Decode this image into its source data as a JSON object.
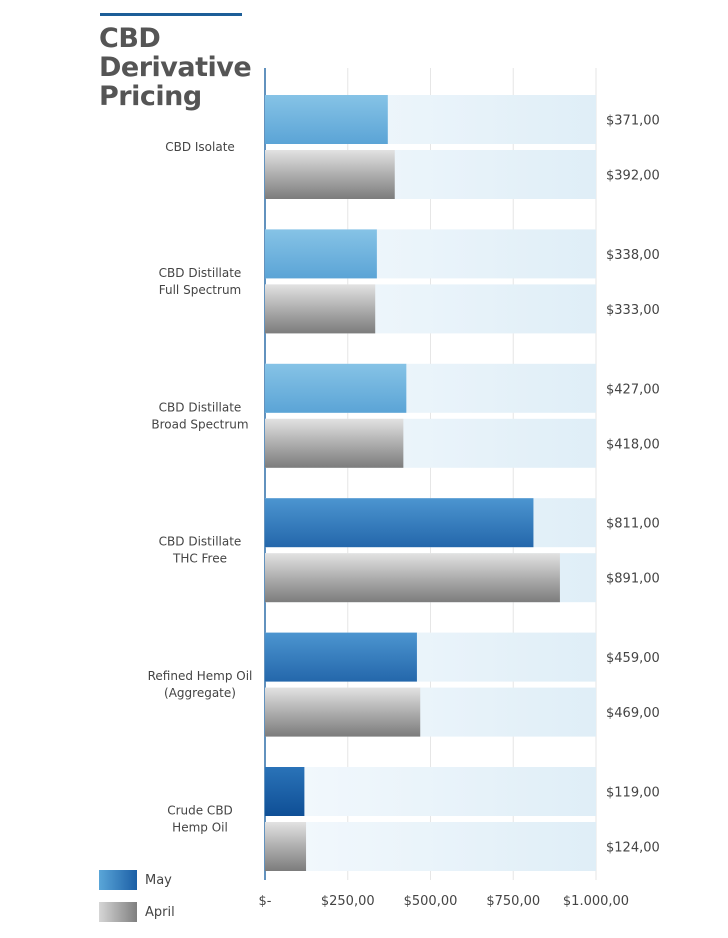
{
  "title": "CBD Derivative Pricing",
  "legend": [
    {
      "label": "May",
      "color": "#2f7bbf"
    },
    {
      "label": "April",
      "color": "#8e8e8e"
    }
  ],
  "chart_data": {
    "type": "bar",
    "orientation": "horizontal",
    "title": "CBD Derivative Pricing",
    "categories": [
      [
        "CBD Isolate"
      ],
      [
        "CBD Distillate",
        "Full Spectrum"
      ],
      [
        "CBD Distillate",
        "Broad Spectrum"
      ],
      [
        "CBD Distillate",
        "THC Free"
      ],
      [
        "Refined Hemp Oil",
        "(Aggregate)"
      ],
      [
        "Crude CBD",
        "Hemp Oil"
      ]
    ],
    "series": [
      {
        "name": "May",
        "values": [
          371,
          338,
          427,
          811,
          459,
          119
        ],
        "value_labels": [
          "$371,00",
          "$338,00",
          "$427,00",
          "$811,00",
          "$459,00",
          "$119,00"
        ]
      },
      {
        "name": "April",
        "values": [
          392,
          333,
          418,
          891,
          469,
          124
        ],
        "value_labels": [
          "$392,00",
          "$333,00",
          "$418,00",
          "$891,00",
          "$469,00",
          "$124,00"
        ]
      }
    ],
    "xlim": [
      0,
      1000
    ],
    "xticks": [
      0,
      250,
      500,
      750,
      1000
    ],
    "xtick_labels": [
      "$-",
      "$250,00",
      "$500,00",
      "$750,00",
      "$1.000,00"
    ],
    "grid": true,
    "legend_position": "bottom-left"
  }
}
